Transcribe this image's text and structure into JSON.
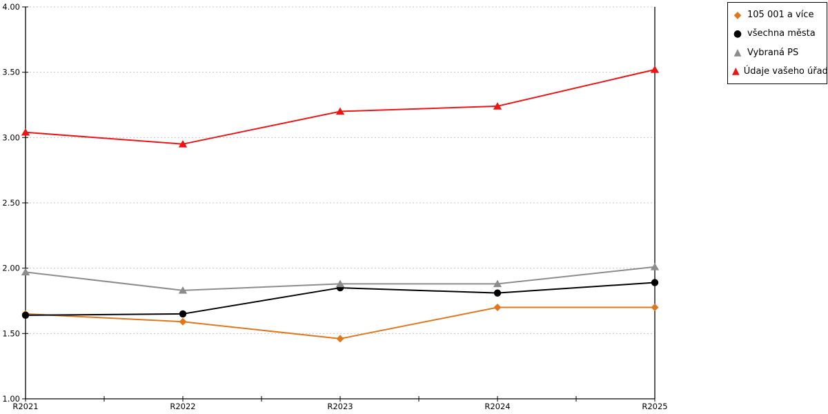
{
  "chart_data": {
    "type": "line",
    "title": "",
    "xlabel": "",
    "ylabel": "",
    "categories": [
      "R2021",
      "R2022",
      "R2023",
      "R2024",
      "R2025"
    ],
    "series": [
      {
        "name": "105 001 a více",
        "marker": "diamond",
        "color": "#E2761B",
        "values": [
          1.65,
          1.59,
          1.46,
          1.7,
          1.7
        ]
      },
      {
        "name": "všechna města",
        "marker": "circle",
        "color": "#000000",
        "values": [
          1.64,
          1.65,
          1.85,
          1.81,
          1.89
        ]
      },
      {
        "name": "Vybraná PS",
        "marker": "triangle",
        "color": "#8C8C8C",
        "values": [
          1.97,
          1.83,
          1.88,
          1.88,
          2.01
        ]
      },
      {
        "name": "Údaje vašeho úřadu",
        "marker": "triangle",
        "color": "#EE1414",
        "values": [
          3.04,
          2.95,
          3.2,
          3.24,
          3.52
        ]
      }
    ],
    "ylim": [
      1.0,
      4.0
    ],
    "ytick_step": 0.5,
    "ytick_labels": [
      "1.00",
      "1.50",
      "2.00",
      "2.50",
      "3.00",
      "3.50",
      "4.00"
    ],
    "grid": "horizontal-dotted",
    "gridline_color": "#c4c4c4",
    "axis_color": "#000000",
    "legend_position": "top-right",
    "x_minor_ticks": true
  },
  "icons": {
    "diamond": "◆",
    "circle": "●",
    "triangle": "▲"
  }
}
